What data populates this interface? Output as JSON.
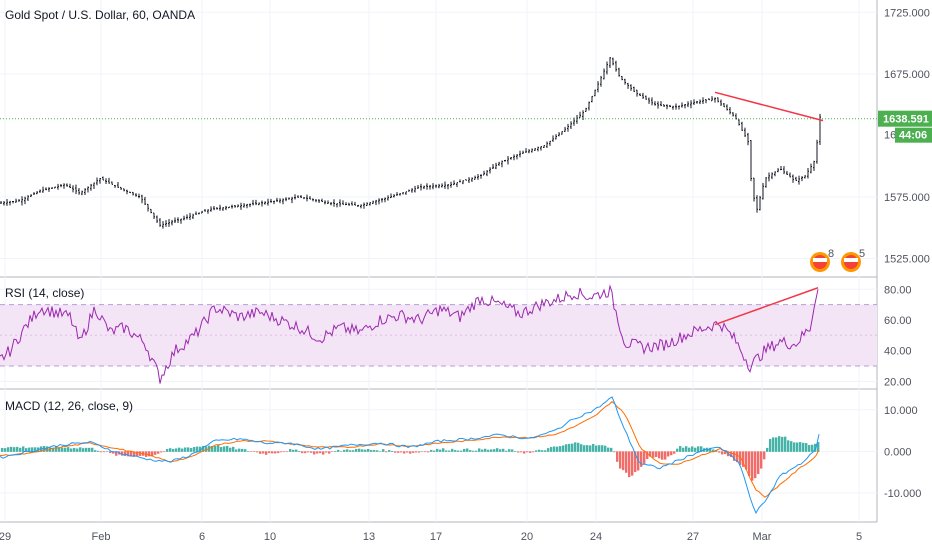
{
  "title": "Gold Spot / U.S. Dollar, 60, OANDA",
  "chart_data": [
    {
      "type": "candlestick",
      "title": "Gold Spot / U.S. Dollar, 60, OANDA",
      "ylim": [
        1510,
        1735
      ],
      "y_ticks": [
        "1725.000",
        "1675.000",
        "1575.000",
        "1525.000"
      ],
      "x_ticks": [
        "29",
        "Feb",
        "6",
        "10",
        "13",
        "17",
        "20",
        "24",
        "27",
        "Mar",
        "5"
      ],
      "current_price": {
        "value": 1638.591,
        "label": "1638.591",
        "countdown": "44:06",
        "partial_label": "16"
      },
      "price_path": [
        [
          0,
          1570
        ],
        [
          20,
          1572
        ],
        [
          40,
          1580
        ],
        [
          65,
          1585
        ],
        [
          80,
          1578
        ],
        [
          100,
          1590
        ],
        [
          120,
          1582
        ],
        [
          140,
          1575
        ],
        [
          160,
          1552
        ],
        [
          185,
          1558
        ],
        [
          210,
          1565
        ],
        [
          240,
          1568
        ],
        [
          270,
          1571
        ],
        [
          300,
          1575
        ],
        [
          330,
          1570
        ],
        [
          360,
          1568
        ],
        [
          390,
          1575
        ],
        [
          420,
          1583
        ],
        [
          450,
          1585
        ],
        [
          480,
          1592
        ],
        [
          500,
          1603
        ],
        [
          520,
          1610
        ],
        [
          545,
          1617
        ],
        [
          565,
          1630
        ],
        [
          585,
          1645
        ],
        [
          600,
          1670
        ],
        [
          610,
          1688
        ],
        [
          620,
          1672
        ],
        [
          635,
          1660
        ],
        [
          655,
          1650
        ],
        [
          675,
          1648
        ],
        [
          695,
          1652
        ],
        [
          715,
          1655
        ],
        [
          735,
          1640
        ],
        [
          748,
          1620
        ],
        [
          752,
          1580
        ],
        [
          757,
          1565
        ],
        [
          765,
          1590
        ],
        [
          780,
          1598
        ],
        [
          795,
          1588
        ],
        [
          805,
          1592
        ],
        [
          815,
          1605
        ],
        [
          820,
          1640
        ]
      ],
      "trendline": {
        "from": [
          715,
          1660
        ],
        "to": [
          823,
          1637
        ]
      },
      "event_badges": [
        "8",
        "5"
      ]
    },
    {
      "type": "line",
      "title": "RSI (14, close)",
      "ylim": [
        15,
        88
      ],
      "y_ticks": [
        "80.00",
        "60.00",
        "40.00",
        "20.00"
      ],
      "band": [
        30,
        70
      ],
      "path": [
        [
          0,
          34
        ],
        [
          10,
          40
        ],
        [
          25,
          55
        ],
        [
          40,
          68
        ],
        [
          55,
          65
        ],
        [
          70,
          62
        ],
        [
          80,
          45
        ],
        [
          95,
          68
        ],
        [
          110,
          52
        ],
        [
          125,
          55
        ],
        [
          145,
          45
        ],
        [
          160,
          22
        ],
        [
          175,
          40
        ],
        [
          195,
          50
        ],
        [
          215,
          68
        ],
        [
          240,
          62
        ],
        [
          260,
          65
        ],
        [
          280,
          60
        ],
        [
          300,
          55
        ],
        [
          320,
          48
        ],
        [
          340,
          55
        ],
        [
          360,
          52
        ],
        [
          380,
          60
        ],
        [
          400,
          63
        ],
        [
          420,
          60
        ],
        [
          440,
          67
        ],
        [
          460,
          62
        ],
        [
          480,
          74
        ],
        [
          500,
          70
        ],
        [
          520,
          64
        ],
        [
          540,
          70
        ],
        [
          560,
          74
        ],
        [
          575,
          78
        ],
        [
          590,
          75
        ],
        [
          610,
          79
        ],
        [
          625,
          45
        ],
        [
          645,
          42
        ],
        [
          665,
          44
        ],
        [
          685,
          50
        ],
        [
          705,
          55
        ],
        [
          720,
          58
        ],
        [
          735,
          47
        ],
        [
          750,
          30
        ],
        [
          765,
          40
        ],
        [
          780,
          46
        ],
        [
          795,
          44
        ],
        [
          810,
          55
        ],
        [
          818,
          80
        ]
      ],
      "trendline": {
        "from": [
          715,
          57
        ],
        "to": [
          818,
          81
        ]
      }
    },
    {
      "type": "line",
      "title": "MACD (12, 26, close, 9)",
      "ylim": [
        -17,
        15
      ],
      "y_ticks": [
        "10.000",
        "0.000",
        "-10.000"
      ],
      "macd": [
        [
          0,
          -1.5
        ],
        [
          30,
          0
        ],
        [
          60,
          1.5
        ],
        [
          90,
          2.2
        ],
        [
          120,
          -0.5
        ],
        [
          150,
          -2
        ],
        [
          170,
          -2.5
        ],
        [
          190,
          -1
        ],
        [
          215,
          2.5
        ],
        [
          240,
          3
        ],
        [
          265,
          2
        ],
        [
          290,
          2
        ],
        [
          320,
          0.5
        ],
        [
          350,
          1.5
        ],
        [
          380,
          2
        ],
        [
          410,
          1
        ],
        [
          440,
          2.5
        ],
        [
          470,
          3
        ],
        [
          500,
          4
        ],
        [
          530,
          3
        ],
        [
          555,
          5
        ],
        [
          575,
          8
        ],
        [
          595,
          10
        ],
        [
          612,
          13
        ],
        [
          625,
          5
        ],
        [
          640,
          -3
        ],
        [
          660,
          -4
        ],
        [
          680,
          -2
        ],
        [
          700,
          0
        ],
        [
          720,
          1
        ],
        [
          740,
          -3
        ],
        [
          755,
          -15
        ],
        [
          765,
          -12
        ],
        [
          780,
          -6
        ],
        [
          800,
          -3
        ],
        [
          815,
          0
        ],
        [
          820,
          5
        ]
      ],
      "signal": [
        [
          0,
          -1
        ],
        [
          30,
          -0.5
        ],
        [
          60,
          1
        ],
        [
          90,
          2
        ],
        [
          120,
          0.5
        ],
        [
          150,
          -1
        ],
        [
          170,
          -2.5
        ],
        [
          190,
          -1.5
        ],
        [
          215,
          1.5
        ],
        [
          240,
          2.5
        ],
        [
          265,
          2.5
        ],
        [
          290,
          1.8
        ],
        [
          320,
          1
        ],
        [
          350,
          1
        ],
        [
          380,
          1.8
        ],
        [
          410,
          1.2
        ],
        [
          440,
          2
        ],
        [
          470,
          2.6
        ],
        [
          500,
          3.5
        ],
        [
          530,
          3.3
        ],
        [
          555,
          4
        ],
        [
          575,
          6
        ],
        [
          595,
          8.5
        ],
        [
          612,
          12
        ],
        [
          625,
          9
        ],
        [
          640,
          1
        ],
        [
          660,
          -3
        ],
        [
          680,
          -3
        ],
        [
          700,
          -1
        ],
        [
          720,
          0.5
        ],
        [
          740,
          -1
        ],
        [
          755,
          -9
        ],
        [
          765,
          -11
        ],
        [
          780,
          -8
        ],
        [
          800,
          -4
        ],
        [
          815,
          -1.5
        ],
        [
          820,
          1
        ]
      ],
      "histogram": [
        [
          20,
          1
        ],
        [
          60,
          1
        ],
        [
          90,
          0.8
        ],
        [
          120,
          -1
        ],
        [
          150,
          -1
        ],
        [
          170,
          0.5
        ],
        [
          190,
          1
        ],
        [
          215,
          1.5
        ],
        [
          240,
          0.5
        ],
        [
          265,
          -0.5
        ],
        [
          290,
          0.3
        ],
        [
          320,
          -0.5
        ],
        [
          350,
          0.5
        ],
        [
          380,
          0.3
        ],
        [
          410,
          -0.3
        ],
        [
          440,
          0.5
        ],
        [
          470,
          0.4
        ],
        [
          500,
          0.5
        ],
        [
          530,
          -0.3
        ],
        [
          555,
          1
        ],
        [
          575,
          2
        ],
        [
          595,
          1.5
        ],
        [
          612,
          1
        ],
        [
          620,
          -4
        ],
        [
          630,
          -6
        ],
        [
          640,
          -4
        ],
        [
          650,
          -1
        ],
        [
          665,
          -2
        ],
        [
          680,
          1
        ],
        [
          700,
          1.2
        ],
        [
          715,
          0.5
        ],
        [
          735,
          -2
        ],
        [
          745,
          -4
        ],
        [
          752,
          -7
        ],
        [
          760,
          -5
        ],
        [
          770,
          3
        ],
        [
          780,
          4
        ],
        [
          795,
          2
        ],
        [
          805,
          2
        ],
        [
          815,
          1.5
        ],
        [
          820,
          3
        ]
      ]
    }
  ],
  "colors": {
    "candle_up": "#26a69a",
    "candle_down": "#ef5350",
    "bar": "#131722",
    "trendline": "#f23645",
    "rsi": "#9c27b0",
    "rsi_band": "#f3e5f5",
    "macd": "#2196f3",
    "signal": "#ff6d00",
    "hist_up": "#26a69a",
    "hist_down": "#ef5350",
    "price_tag": "#4caf50"
  }
}
